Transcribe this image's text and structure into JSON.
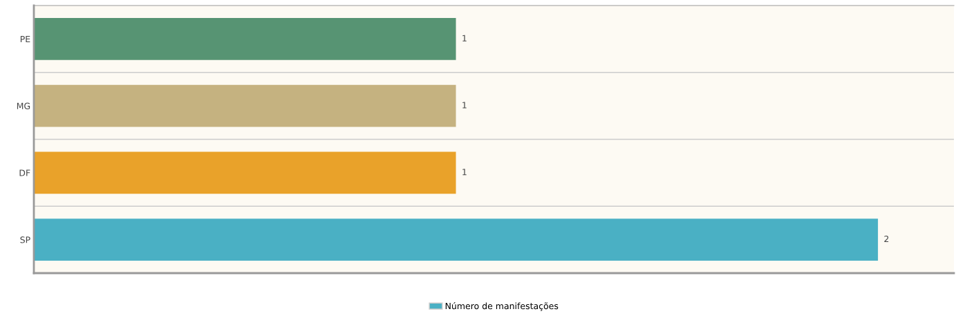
{
  "chart_data": {
    "type": "bar",
    "orientation": "horizontal",
    "categories": [
      "PE",
      "MG",
      "DF",
      "SP"
    ],
    "series": [
      {
        "name": "Número de manifestações",
        "color": "#4ab0c4",
        "colors": [
          "#579473",
          "#c5b280",
          "#e9a22a",
          "#4ab0c4"
        ],
        "values": [
          1,
          1,
          1,
          2
        ]
      }
    ],
    "xlim": [
      0,
      2.18
    ],
    "data_labels": true,
    "grid": "y",
    "legend": "bottom",
    "tick_labels": "y"
  }
}
